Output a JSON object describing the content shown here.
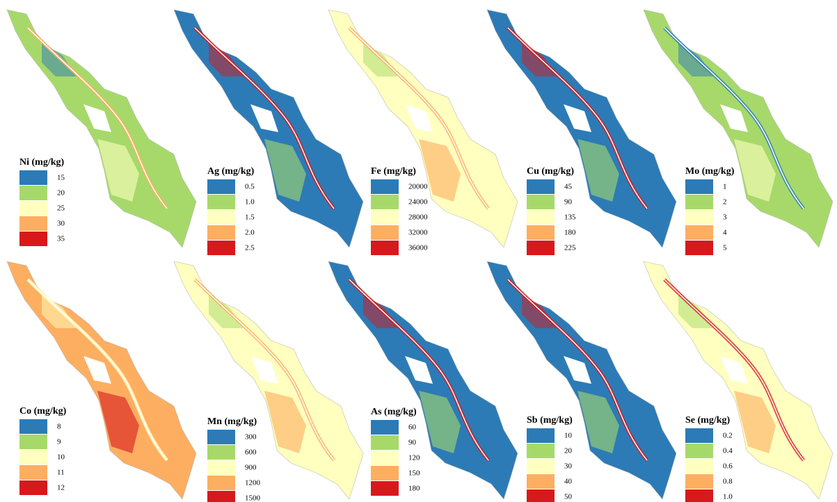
{
  "panels": [
    {
      "title": "Ni (mg/kg)",
      "values": [
        "15",
        "20",
        "25",
        "30",
        "35"
      ]
    },
    {
      "title": "Ag (mg/kg)",
      "values": [
        "0.5",
        "1.0",
        "1.5",
        "2.0",
        "2.5"
      ]
    },
    {
      "title": "Fe (mg/kg)",
      "values": [
        "20000",
        "24000",
        "28000",
        "32000",
        "36000"
      ]
    },
    {
      "title": "Cu (mg/kg)",
      "values": [
        "45",
        "90",
        "135",
        "180",
        "225"
      ]
    },
    {
      "title": "Mo (mg/kg)",
      "values": [
        "1",
        "2",
        "3",
        "4",
        "5"
      ]
    },
    {
      "title": "Co (mg/kg)",
      "values": [
        "8",
        "9",
        "10",
        "11",
        "12"
      ]
    },
    {
      "title": "Mn (mg/kg)",
      "values": [
        "300",
        "600",
        "900",
        "1200",
        "1500"
      ]
    },
    {
      "title": "As (mg/kg)",
      "values": [
        "60",
        "90",
        "120",
        "150",
        "180"
      ]
    },
    {
      "title": "Sb (mg/kg)",
      "values": [
        "10",
        "20",
        "30",
        "40",
        "50"
      ]
    },
    {
      "title": "Se (mg/kg)",
      "values": [
        "0.2",
        "0.4",
        "0.6",
        "0.8",
        "1.0"
      ]
    }
  ],
  "legend_colors": [
    "#2c7bb6",
    "#a6d96a",
    "#ffffbf",
    "#fdae61",
    "#d7191c"
  ]
}
